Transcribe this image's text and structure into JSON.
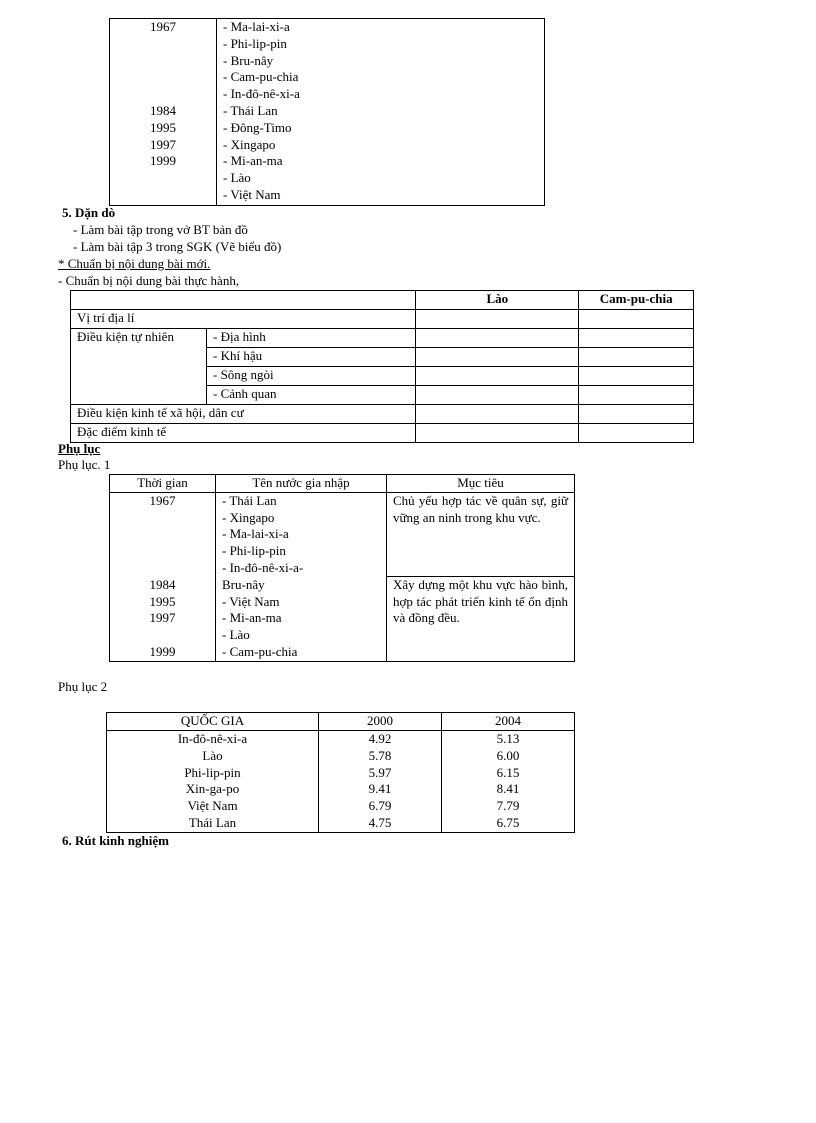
{
  "table_members_top": {
    "years": "1967\n\n\n\n\n1984\n1995\n1997\n1999\n\n",
    "countries": "- Ma-lai-xi-a\n- Phi-lip-pin\n- Bru-nây\n- Cam-pu-chia\n- In-đô-nê-xi-a\n- Thái Lan\n- Đông-Timo\n- Xingapo\n- Mi-an-ma\n- Lào\n- Việt Nam"
  },
  "section5": {
    "heading": "5. Dặn dò",
    "items": [
      "- Làm bài tập trong vở BT bản đồ",
      "- Làm bài tập 3 trong SGK (Vẽ biểu đồ)"
    ],
    "prep_heading": "* Chuẩn bị nội dung bài mới.",
    "prep_item": "- Chuẩn bị nội  dung bài thực hành,"
  },
  "practice_table": {
    "headers": [
      "",
      "Lào",
      "Cam-pu-chia"
    ],
    "row_location": "Vị trí địa lí",
    "row_natural": "Điều kiện tự nhiên",
    "natural_sub": [
      "- Địa hình",
      "- Khí hậu",
      "- Sông ngòi",
      "- Cảnh quan"
    ],
    "row_socio": "Điều kiện kinh tế xã hội,  dân cư",
    "row_economy": "Đặc điểm kinh tế"
  },
  "appendix": {
    "heading": "Phụ lục",
    "a1_label": "Phụ lục. 1",
    "a1_headers": [
      "Thời gian",
      "Tên nước gia nhập",
      "Mục tiêu"
    ],
    "a1_years": "1967\n\n\n\n\n1984\n1995\n1997\n\n1999",
    "a1_countries": "- Thái Lan\n- Xingapo\n- Ma-lai-xi-a\n- Phi-lip-pin\n- In-đô-nê-xi-a-\n Bru-nây\n- Việt Nam\n- Mi-an-ma\n- Lào\n- Cam-pu-chia",
    "a1_goal1": "Chủ yếu hợp tác về quân sự, giữ vững an ninh trong khu vực.",
    "a1_goal2": "Xây dựng một khu vực hào bình,  hợp tác phát triển kinh tế ổn định và đồng đều.",
    "a2_label": "Phụ lục  2",
    "a2_headers": [
      "QUỐC GIA",
      "2000",
      "2004"
    ],
    "a2_rows": [
      [
        "In-đô-nê-xi-a",
        "4.92",
        "5.13"
      ],
      [
        "Lào",
        "5.78",
        "6.00"
      ],
      [
        "Phi-lip-pin",
        "5.97",
        "6.15"
      ],
      [
        "Xin-ga-po",
        "9.41",
        "8.41"
      ],
      [
        " Việt Nam",
        "6.79",
        "7.79"
      ],
      [
        "Thái Lan",
        "4.75",
        "6.75"
      ]
    ]
  },
  "section6": {
    "heading": "6. Rút kinh nghiệm"
  }
}
